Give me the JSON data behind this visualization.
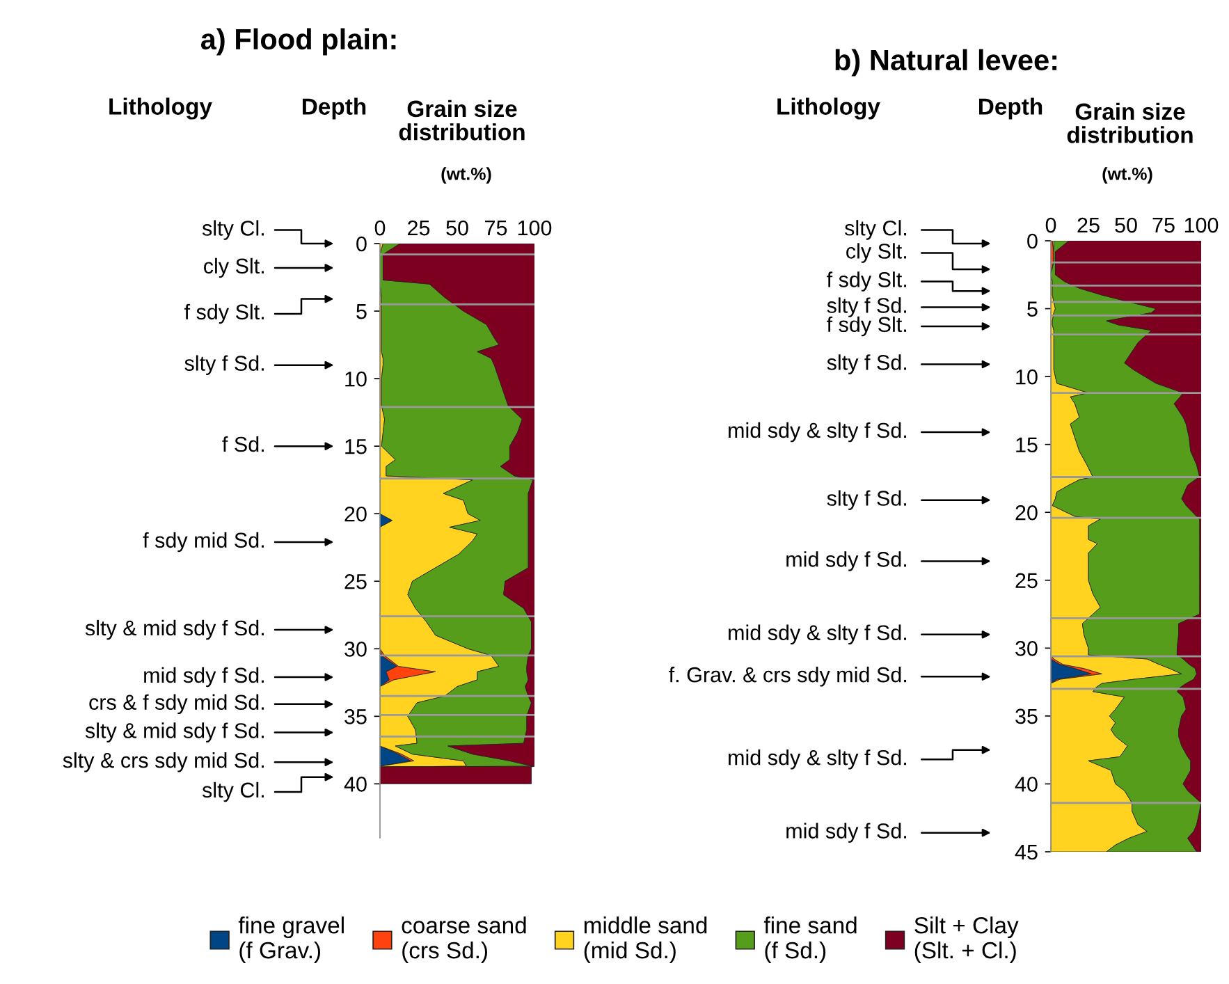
{
  "chart_data": [
    {
      "type": "area",
      "title": "a) Flood plain:",
      "ylabel": "Depth",
      "xlabel": "Grain size\ndistribution",
      "orientation": "horizontal",
      "stacked": true,
      "legend": "bottom",
      "annotations": [
        "Lithology",
        "(wt.%)",
        "slty Cl.",
        "cly Slt.",
        "f sdy Slt.",
        "slty f Sd.",
        "f Sd.",
        "f sdy mid Sd.",
        "slty & mid sdy f Sd.",
        "mid sdy f Sd.",
        "crs & f sdy mid Sd.",
        "slty & mid sdy f Sd.",
        "slty & crs sdy mid Sd.",
        "slty Cl."
      ],
      "x": [
        0,
        0.8,
        2.7,
        3,
        4,
        5,
        6,
        7,
        7.5,
        8,
        8.5,
        9,
        10,
        11,
        12,
        13,
        14,
        15,
        16,
        16.5,
        17.2,
        17.5,
        18.5,
        19,
        20,
        20.5,
        21,
        21.5,
        22,
        23,
        24,
        25,
        26,
        27,
        28,
        29,
        30,
        30.5,
        31.3,
        31.7,
        32.3,
        32.8,
        33.5,
        34,
        35,
        36,
        37,
        37.2,
        37.8,
        38.3,
        38.7,
        38.75,
        40
      ],
      "series": [
        {
          "name": "fine gravel\n(f Grav.)",
          "color": "#004586",
          "values": [
            0,
            0,
            0,
            0,
            0,
            0,
            0,
            0,
            0,
            0,
            0,
            0,
            0,
            0,
            0,
            0,
            0,
            0,
            0,
            0,
            0,
            0,
            0,
            0,
            0,
            8,
            0,
            0,
            0,
            0,
            0,
            0,
            0,
            0,
            0,
            0,
            0,
            1,
            11,
            4,
            6,
            0,
            0,
            0,
            0,
            0,
            0,
            0,
            12,
            20,
            0,
            0,
            0
          ]
        },
        {
          "name": "coarse sand\n(crs Sd.)",
          "color": "#ff420e",
          "values": [
            0,
            0,
            0,
            0,
            0,
            0,
            0,
            0,
            0,
            0,
            0,
            0,
            0,
            0,
            0,
            0,
            0,
            0,
            0,
            0,
            0,
            0,
            0,
            0,
            0,
            0,
            0,
            0,
            0,
            0,
            0,
            0,
            0,
            0,
            0,
            0,
            0,
            2,
            1,
            32,
            3,
            0,
            0,
            0,
            0,
            0,
            0,
            0,
            2,
            2,
            0,
            0,
            0
          ]
        },
        {
          "name": "middle sand\n(mid Sd.)",
          "color": "#ffd320",
          "values": [
            2,
            0,
            0,
            0,
            1,
            1,
            1,
            1,
            1,
            1,
            2,
            2,
            1,
            1,
            1,
            3,
            2,
            1,
            10,
            4,
            4,
            60,
            41,
            54,
            57,
            57,
            45,
            63,
            60,
            51,
            36,
            21,
            18,
            23,
            30,
            36,
            57,
            69,
            65,
            27,
            54,
            50,
            42,
            24,
            18,
            23,
            24,
            10,
            7,
            32,
            56,
            0,
            0
          ]
        },
        {
          "name": "fine sand\n(f Sd.)",
          "color": "#579d1c",
          "values": [
            11,
            2,
            2,
            32,
            41,
            53,
            68,
            73,
            76,
            62,
            70,
            72,
            76,
            79,
            82,
            89,
            87,
            83,
            74,
            74,
            83,
            39,
            55,
            42,
            39,
            31,
            51,
            33,
            36,
            45,
            60,
            60,
            62,
            70,
            68,
            62,
            41,
            24,
            18,
            32,
            33,
            44,
            54,
            74,
            77,
            72,
            69,
            34,
            39,
            30,
            43,
            0,
            0
          ]
        },
        {
          "name": "Silt + Clay\n(Slt. + Cl.)",
          "color": "#7e0021",
          "values": [
            87,
            98,
            98,
            68,
            58,
            46,
            31,
            26,
            23,
            37,
            28,
            26,
            23,
            20,
            17,
            8,
            11,
            16,
            16,
            22,
            13,
            1,
            4,
            4,
            4,
            4,
            4,
            4,
            4,
            4,
            4,
            19,
            20,
            7,
            2,
            2,
            2,
            4,
            5,
            5,
            4,
            6,
            4,
            2,
            5,
            5,
            7,
            56,
            40,
            16,
            1,
            98,
            98
          ]
        }
      ],
      "xlim": [
        0,
        100
      ],
      "xticks": [
        0,
        25,
        50,
        75,
        100
      ],
      "ylim": [
        44,
        0
      ],
      "yticks": [
        0,
        5,
        10,
        15,
        20,
        25,
        30,
        35,
        40
      ],
      "ref_lines": [
        {
          "axis": "y",
          "value": 0.8,
          "color": "#999999"
        },
        {
          "axis": "y",
          "value": 4.5,
          "color": "#999999"
        },
        {
          "axis": "y",
          "value": 12.1,
          "color": "#999999"
        },
        {
          "axis": "y",
          "value": 17.4,
          "color": "#999999"
        },
        {
          "axis": "y",
          "value": 27.6,
          "color": "#999999"
        },
        {
          "axis": "y",
          "value": 30.5,
          "color": "#999999"
        },
        {
          "axis": "y",
          "value": 33.5,
          "color": "#999999"
        },
        {
          "axis": "y",
          "value": 34.9,
          "color": "#999999"
        },
        {
          "axis": "y",
          "value": 36.5,
          "color": "#999999"
        }
      ]
    },
    {
      "type": "area",
      "title": "b) Natural levee:",
      "ylabel": "Depth",
      "xlabel": "Grain size\ndistribution",
      "orientation": "horizontal",
      "stacked": true,
      "annotations": [
        "Lithology",
        "(wt.%)",
        "slty Cl.",
        "cly Slt.",
        "f sdy Slt.",
        "slty f Sd.",
        "f sdy Slt.",
        "slty f Sd.",
        "mid sdy & slty f Sd.",
        "slty f Sd.",
        "mid sdy f Sd.",
        "mid sdy & slty f Sd.",
        "f. Grav. & crs sdy mid Sd.",
        "mid sdy & slty f Sd.",
        "mid sdy f Sd."
      ],
      "x": [
        0,
        0.8,
        1.5,
        2.5,
        3,
        3.5,
        4,
        4.5,
        5,
        5.3,
        5.9,
        6.2,
        6.6,
        7.5,
        8.5,
        9,
        9.5,
        10.5,
        11.2,
        11.5,
        12,
        13,
        13.5,
        14.5,
        15.5,
        16.5,
        17.4,
        17.6,
        18,
        18.5,
        19,
        19.5,
        20.3,
        20.5,
        21,
        22,
        22.3,
        23,
        25,
        26,
        27,
        27.5,
        28.2,
        29,
        30,
        30.5,
        30.8,
        31.2,
        31.5,
        31.9,
        32.3,
        32.6,
        32.9,
        33.2,
        33.6,
        34.5,
        35,
        35.5,
        36,
        36.5,
        37.2,
        38,
        38.3,
        39,
        40,
        40.5,
        41.4,
        42,
        43,
        43.5,
        44,
        44.5,
        45
      ],
      "series": [
        {
          "color": "#004586",
          "values": [
            0,
            0,
            0,
            0,
            0,
            0,
            0,
            0,
            0,
            0,
            0,
            0,
            0,
            0,
            0,
            0,
            0,
            0,
            0,
            0,
            0,
            0,
            0,
            0,
            0,
            0,
            0,
            0,
            0,
            0,
            0,
            0,
            0,
            0,
            0,
            0,
            0,
            0,
            0,
            0,
            0,
            0,
            0,
            0,
            0,
            0,
            0,
            6,
            16,
            27,
            4,
            0,
            0,
            0,
            0,
            0,
            0,
            0,
            0,
            0,
            0,
            0,
            0,
            0,
            0,
            0,
            0,
            0,
            0,
            0,
            0,
            0,
            0
          ]
        },
        {
          "color": "#ff420e",
          "values": [
            1,
            2,
            2,
            0,
            0,
            0,
            0,
            0,
            0,
            0,
            0,
            0,
            0,
            0,
            0,
            0,
            0,
            0,
            0,
            0,
            0,
            0,
            0,
            0,
            0,
            0,
            0,
            0,
            0,
            0,
            0,
            0,
            0,
            0,
            0,
            0,
            0,
            0,
            0,
            0,
            0,
            0,
            0,
            0,
            0,
            0,
            2,
            2,
            6,
            7,
            2,
            0,
            0,
            0,
            0,
            0,
            0,
            0,
            0,
            0,
            0,
            0,
            0,
            0,
            0,
            0,
            0,
            0,
            0,
            0,
            0,
            0,
            0
          ]
        },
        {
          "color": "#ffd320",
          "values": [
            1,
            0,
            0,
            0,
            1,
            1,
            1,
            2,
            3,
            2,
            1,
            1,
            2,
            2,
            2,
            2,
            2,
            4,
            25,
            13,
            16,
            19,
            13,
            16,
            19,
            24,
            28,
            19,
            12,
            4,
            3,
            1,
            16,
            33,
            25,
            25,
            31,
            25,
            25,
            28,
            33,
            28,
            21,
            22,
            25,
            25,
            62,
            64,
            57,
            53,
            49,
            34,
            30,
            28,
            49,
            43,
            39,
            43,
            40,
            43,
            51,
            46,
            25,
            40,
            43,
            49,
            54,
            54,
            58,
            64,
            52,
            43,
            37
          ]
        },
        {
          "color": "#579d1c",
          "values": [
            10,
            1,
            1,
            3,
            8,
            18,
            33,
            50,
            67,
            65,
            36,
            44,
            65,
            56,
            50,
            47,
            53,
            66,
            63,
            73,
            66,
            69,
            77,
            76,
            74,
            73,
            71,
            77,
            79,
            85,
            84,
            89,
            81,
            66,
            74,
            74,
            68,
            74,
            74,
            71,
            66,
            71,
            64,
            63,
            59,
            59,
            24,
            20,
            17,
            10,
            40,
            56,
            56,
            56,
            39,
            47,
            48,
            43,
            45,
            42,
            36,
            45,
            68,
            53,
            45,
            42,
            46,
            45,
            39,
            31,
            39,
            51,
            60
          ]
        },
        {
          "color": "#7e0021",
          "values": [
            88,
            97,
            97,
            97,
            91,
            81,
            66,
            48,
            30,
            33,
            63,
            55,
            33,
            42,
            48,
            51,
            45,
            30,
            12,
            14,
            18,
            12,
            10,
            8,
            7,
            3,
            1,
            4,
            9,
            11,
            13,
            10,
            3,
            1,
            1,
            1,
            1,
            1,
            1,
            1,
            1,
            1,
            15,
            15,
            16,
            16,
            12,
            8,
            4,
            3,
            5,
            10,
            14,
            16,
            12,
            10,
            13,
            14,
            15,
            15,
            13,
            9,
            7,
            7,
            12,
            9,
            0,
            1,
            3,
            5,
            9,
            6,
            3
          ]
        }
      ],
      "xlim": [
        0,
        100
      ],
      "xticks": [
        0,
        25,
        50,
        75,
        100
      ],
      "ylim": [
        45,
        0
      ],
      "yticks": [
        0,
        5,
        10,
        15,
        20,
        25,
        30,
        35,
        40,
        45
      ],
      "ref_lines": [
        {
          "axis": "y",
          "value": 1.6,
          "color": "#999999"
        },
        {
          "axis": "y",
          "value": 3.3,
          "color": "#999999"
        },
        {
          "axis": "y",
          "value": 4.5,
          "color": "#999999"
        },
        {
          "axis": "y",
          "value": 5.5,
          "color": "#999999"
        },
        {
          "axis": "y",
          "value": 6.9,
          "color": "#999999"
        },
        {
          "axis": "y",
          "value": 11.2,
          "color": "#999999"
        },
        {
          "axis": "y",
          "value": 17.4,
          "color": "#999999"
        },
        {
          "axis": "y",
          "value": 20.4,
          "color": "#999999"
        },
        {
          "axis": "y",
          "value": 27.8,
          "color": "#999999"
        },
        {
          "axis": "y",
          "value": 30.6,
          "color": "#999999"
        },
        {
          "axis": "y",
          "value": 33.0,
          "color": "#999999"
        },
        {
          "axis": "y",
          "value": 41.4,
          "color": "#999999"
        }
      ]
    }
  ]
}
